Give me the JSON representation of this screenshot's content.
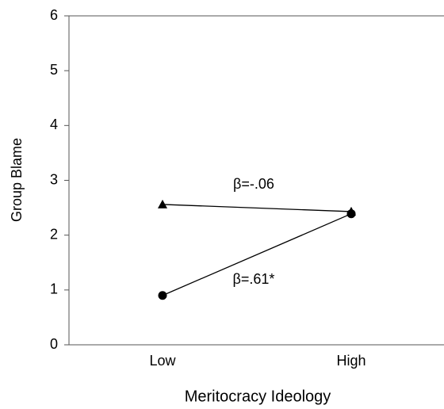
{
  "chart_data": {
    "type": "line",
    "y_label": "Group Blame",
    "x_label": "Meritocracy Ideology",
    "categories": [
      "Low",
      "High"
    ],
    "series": [
      {
        "color": "#000000",
        "marker": "triangle",
        "values": [
          2.56,
          2.43
        ]
      },
      {
        "color": "#000000",
        "marker": "circle",
        "values": [
          0.9,
          2.39
        ]
      }
    ],
    "annotations": [
      "β=-.06",
      "β=.61*"
    ],
    "ylim": [
      0,
      6
    ],
    "yticks": [
      0,
      1,
      2,
      3,
      4,
      5,
      6
    ]
  }
}
